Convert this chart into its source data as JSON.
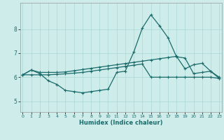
{
  "xlabel": "Humidex (Indice chaleur)",
  "bg_color": "#ceecea",
  "grid_color": "#a8d8d5",
  "line_color": "#1a6b6b",
  "x_ticks": [
    0,
    1,
    2,
    3,
    4,
    5,
    6,
    7,
    8,
    9,
    10,
    11,
    12,
    13,
    14,
    15,
    16,
    17,
    18,
    19,
    20,
    21,
    22,
    23
  ],
  "y_ticks": [
    5,
    6,
    7,
    8
  ],
  "ylim": [
    4.55,
    9.1
  ],
  "xlim": [
    -0.3,
    23.3
  ],
  "line1_y": [
    6.1,
    6.3,
    6.2,
    6.2,
    6.2,
    6.22,
    6.27,
    6.32,
    6.37,
    6.42,
    6.47,
    6.52,
    6.57,
    6.62,
    6.67,
    6.72,
    6.77,
    6.82,
    6.87,
    6.35,
    6.52,
    6.58,
    6.25,
    6.0
  ],
  "line2_y": [
    6.1,
    6.3,
    6.15,
    5.85,
    5.7,
    5.45,
    5.4,
    5.35,
    5.4,
    5.45,
    5.5,
    6.2,
    6.25,
    7.05,
    8.05,
    8.6,
    8.15,
    7.65,
    6.85,
    6.8,
    6.15,
    6.2,
    6.25,
    5.95
  ],
  "line3_y": [
    6.1,
    6.1,
    6.1,
    6.1,
    6.12,
    6.14,
    6.17,
    6.2,
    6.25,
    6.3,
    6.35,
    6.4,
    6.45,
    6.5,
    6.55,
    6.0,
    6.0,
    6.0,
    6.0,
    6.0,
    6.0,
    6.0,
    6.0,
    5.95
  ]
}
